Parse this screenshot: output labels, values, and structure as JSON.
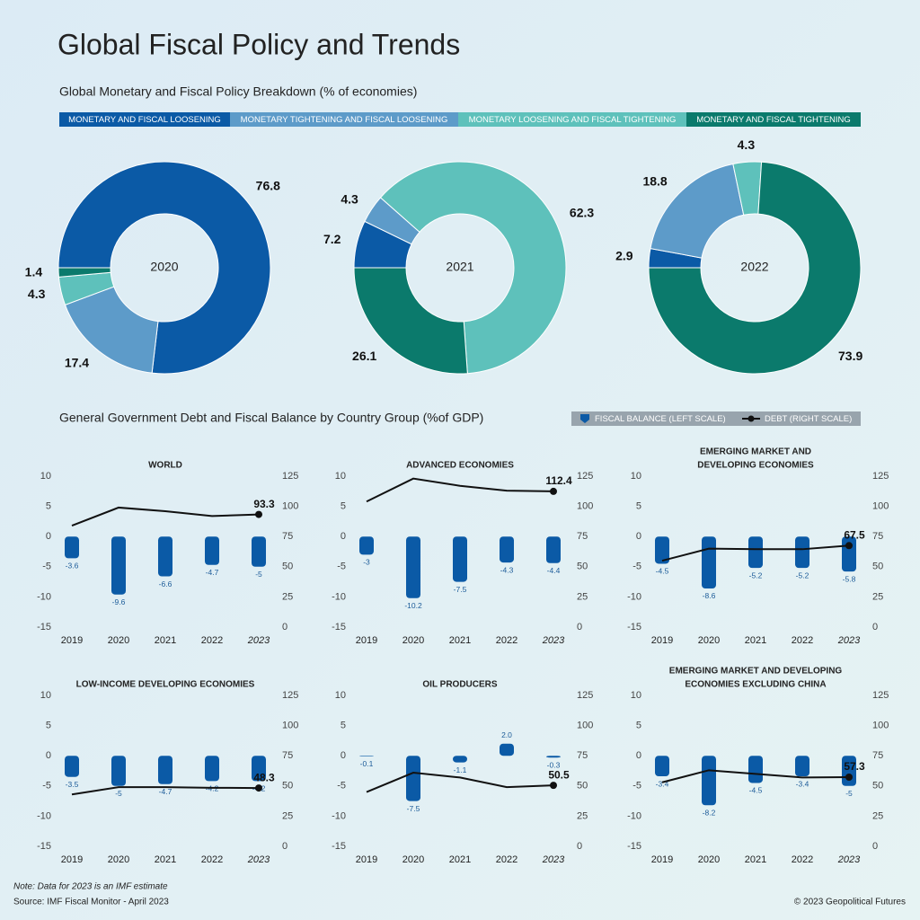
{
  "title": "Global Fiscal Policy and Trends",
  "pie_section": {
    "title": "Global Monetary and Fiscal Policy Breakdown (% of economies)",
    "categories": [
      "MONETARY AND FISCAL LOOSENING",
      "MONETARY TIGHTENING AND FISCAL LOOSENING",
      "MONETARY LOOSENING AND FISCAL TIGHTENING",
      "MONETARY AND FISCAL TIGHTENING"
    ],
    "colors": [
      "#0b5aa6",
      "#5d9bc9",
      "#5ec1bb",
      "#0b7a6c"
    ]
  },
  "combo_section": {
    "title": "General Government Debt and Fiscal Balance by Country Group (%of GDP)",
    "legend": [
      "FISCAL BALANCE (LEFT SCALE)",
      "DEBT (RIGHT SCALE)"
    ]
  },
  "chart_data": [
    {
      "type": "donut",
      "center_label": "2020",
      "values": [
        76.8,
        17.4,
        4.3,
        1.4
      ]
    },
    {
      "type": "donut",
      "center_label": "2021",
      "values": [
        7.2,
        4.3,
        62.3,
        26.1
      ]
    },
    {
      "type": "donut",
      "center_label": "2022",
      "values": [
        2.9,
        18.8,
        4.3,
        73.9
      ]
    },
    {
      "type": "bar_line",
      "title": [
        "WORLD"
      ],
      "categories": [
        "2019",
        "2020",
        "2021",
        "2022",
        "2023"
      ],
      "series": [
        {
          "values": [
            -3.6,
            -9.6,
            -6.6,
            -4.7,
            -5.0
          ],
          "color": "#0b5aa6"
        },
        {
          "values": [
            84,
            99,
            96,
            92,
            93.3
          ],
          "color": "#111111",
          "axis": "y2"
        }
      ],
      "ylim": [
        -15,
        10
      ],
      "yticks": [
        -15,
        -10,
        -5,
        0,
        5,
        10
      ],
      "y2lim": [
        0,
        125
      ],
      "y2ticks": [
        0,
        25,
        50,
        75,
        100,
        125
      ]
    },
    {
      "type": "bar_line",
      "title": [
        "ADVANCED ECONOMIES"
      ],
      "categories": [
        "2019",
        "2020",
        "2021",
        "2022",
        "2023"
      ],
      "series": [
        {
          "values": [
            -3.0,
            -10.2,
            -7.5,
            -4.3,
            -4.4
          ],
          "color": "#0b5aa6"
        },
        {
          "values": [
            104,
            123,
            117,
            113,
            112.4
          ],
          "color": "#111111",
          "axis": "y2"
        }
      ],
      "ylim": [
        -15,
        10
      ],
      "yticks": [
        -15,
        -10,
        -5,
        0,
        5,
        10
      ],
      "y2lim": [
        0,
        125
      ],
      "y2ticks": [
        0,
        25,
        50,
        75,
        100,
        125
      ]
    },
    {
      "type": "bar_line",
      "title": [
        "EMERGING MARKET AND",
        "DEVELOPING ECONOMIES"
      ],
      "categories": [
        "2019",
        "2020",
        "2021",
        "2022",
        "2023"
      ],
      "series": [
        {
          "values": [
            -4.5,
            -8.6,
            -5.2,
            -5.2,
            -5.8
          ],
          "color": "#0b5aa6"
        },
        {
          "values": [
            55,
            65,
            64.5,
            64.5,
            67.5
          ],
          "color": "#111111",
          "axis": "y2"
        }
      ],
      "ylim": [
        -15,
        10
      ],
      "yticks": [
        -15,
        -10,
        -5,
        0,
        5,
        10
      ],
      "y2lim": [
        0,
        125
      ],
      "y2ticks": [
        0,
        25,
        50,
        75,
        100,
        125
      ]
    },
    {
      "type": "bar_line",
      "title": [
        "LOW-INCOME DEVELOPING ECONOMIES"
      ],
      "categories": [
        "2019",
        "2020",
        "2021",
        "2022",
        "2023"
      ],
      "series": [
        {
          "values": [
            -3.5,
            -5.0,
            -4.7,
            -4.2,
            -4.2
          ],
          "color": "#0b5aa6"
        },
        {
          "values": [
            43,
            49,
            49,
            48.5,
            48.3
          ],
          "color": "#111111",
          "axis": "y2"
        }
      ],
      "ylim": [
        -15,
        10
      ],
      "yticks": [
        -15,
        -10,
        -5,
        0,
        5,
        10
      ],
      "y2lim": [
        0,
        125
      ],
      "y2ticks": [
        0,
        25,
        50,
        75,
        100,
        125
      ]
    },
    {
      "type": "bar_line",
      "title": [
        "OIL PRODUCERS"
      ],
      "categories": [
        "2019",
        "2020",
        "2021",
        "2022",
        "2023"
      ],
      "series": [
        {
          "values": [
            -0.1,
            -7.5,
            -1.1,
            2.0,
            -0.3
          ],
          "value_labels": [
            "-0.1",
            "-7.5",
            "-1.1",
            "2.0",
            "-0.3"
          ],
          "color": "#0b5aa6"
        },
        {
          "values": [
            45,
            61,
            57,
            49,
            50.5
          ],
          "color": "#111111",
          "axis": "y2"
        }
      ],
      "ylim": [
        -15,
        10
      ],
      "yticks": [
        -15,
        -10,
        -5,
        0,
        5,
        10
      ],
      "y2lim": [
        0,
        125
      ],
      "y2ticks": [
        0,
        25,
        50,
        75,
        100,
        125
      ]
    },
    {
      "type": "bar_line",
      "title": [
        "EMERGING MARKET AND DEVELOPING",
        "ECONOMIES EXCLUDING CHINA"
      ],
      "categories": [
        "2019",
        "2020",
        "2021",
        "2022",
        "2023"
      ],
      "series": [
        {
          "values": [
            -3.4,
            -8.2,
            -4.5,
            -3.4,
            -5.0
          ],
          "color": "#0b5aa6"
        },
        {
          "values": [
            53,
            63,
            60,
            57,
            57.3
          ],
          "color": "#111111",
          "axis": "y2"
        }
      ],
      "ylim": [
        -15,
        10
      ],
      "yticks": [
        -15,
        -10,
        -5,
        0,
        5,
        10
      ],
      "y2lim": [
        0,
        125
      ],
      "y2ticks": [
        0,
        25,
        50,
        75,
        100,
        125
      ]
    }
  ],
  "note": "Note: Data for 2023 is an IMF estimate",
  "source": "Source: IMF Fiscal Monitor - April 2023",
  "copyright": "© 2023 Geopolitical Futures"
}
